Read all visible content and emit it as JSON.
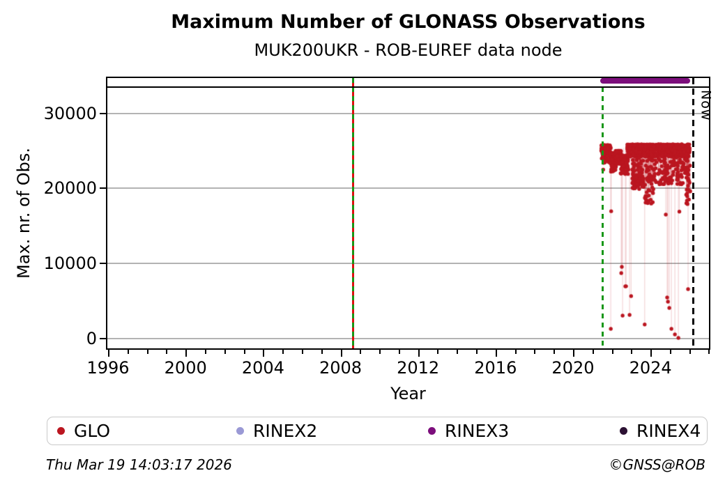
{
  "header": {
    "title": "Maximum Number of GLONASS Observations",
    "subtitle": "MUK200UKR - ROB-EUREF data node"
  },
  "footer": {
    "timestamp": "Thu Mar 19 14:03:17 2026",
    "copyright": "©GNSS@ROB"
  },
  "chart_data": {
    "type": "scatter",
    "title": "Maximum Number of GLONASS Observations",
    "subtitle": "MUK200UKR - ROB-EUREF data node",
    "xlabel": "Year",
    "ylabel": "Max. nr. of Obs.",
    "xlim": [
      1995.89,
      2027.09
    ],
    "ylim": [
      -1513,
      34884
    ],
    "grid": "horizontal-only",
    "xticks_major": [
      1996,
      2000,
      2004,
      2008,
      2012,
      2016,
      2020,
      2024
    ],
    "xticks_minor_step": 1,
    "yticks": [
      0,
      10000,
      20000,
      30000
    ],
    "ytick_labels": [
      "0",
      "10000",
      "20000",
      "30000"
    ],
    "now_line": {
      "x": 2026.2,
      "label": "Now",
      "color": "#000000",
      "dash": [
        9,
        6
      ]
    },
    "vlines": [
      {
        "name": "first-obs-line",
        "x": 2008.65,
        "color": "#dd1111",
        "dash": null,
        "width": 2.5
      },
      {
        "name": "rinex3-start-line",
        "x": 2008.65,
        "color": "#189718",
        "dash": [
          7,
          6
        ],
        "width": 3
      },
      {
        "name": "data-start-line",
        "x": 2021.52,
        "color": "#189718",
        "dash": [
          7,
          6
        ],
        "width": 3
      }
    ],
    "hline": {
      "value": 33500,
      "color": "#000000",
      "width": 2.5
    },
    "rinex3_bar": {
      "x0": 2021.42,
      "x1": 2026.06,
      "value": 34300,
      "thickness": 8,
      "color": "#7c0e7c"
    },
    "series": [
      {
        "name": "GLO",
        "color": "#bb1620",
        "stem_color": "rgba(187,22,32,0.18)",
        "marker_radius": 2.7,
        "seed": 1337,
        "stem_threshold": 22300,
        "stem_top": 24200,
        "band_segments": [
          {
            "x0": 2021.45,
            "x1": 2021.95,
            "ylow": 23400,
            "yhigh": 25750,
            "n": 170,
            "bias": 2.0
          },
          {
            "x0": 2021.95,
            "x1": 2022.22,
            "ylow": 22150,
            "yhigh": 24700,
            "n": 100,
            "bias": 1.6
          },
          {
            "x0": 2022.2,
            "x1": 2022.48,
            "ylow": 23100,
            "yhigh": 25000,
            "n": 90,
            "bias": 1.8
          },
          {
            "x0": 2022.45,
            "x1": 2022.85,
            "ylow": 21900,
            "yhigh": 24400,
            "n": 120,
            "bias": 1.6
          },
          {
            "x0": 2022.8,
            "x1": 2026.02,
            "ylow": 24200,
            "yhigh": 25850,
            "n": 820,
            "bias": 1.4
          },
          {
            "x0": 2023.05,
            "x1": 2023.65,
            "ylow": 19900,
            "yhigh": 24200,
            "n": 90,
            "bias": 0.6
          },
          {
            "x0": 2023.7,
            "x1": 2024.15,
            "ylow": 17900,
            "yhigh": 20800,
            "n": 20,
            "bias": 0.7
          },
          {
            "x0": 2023.75,
            "x1": 2025.95,
            "ylow": 20500,
            "yhigh": 24200,
            "n": 150,
            "bias": 0.8
          },
          {
            "x0": 2025.8,
            "x1": 2026.05,
            "ylow": 18000,
            "yhigh": 24000,
            "n": 25,
            "bias": 0.8
          }
        ],
        "outliers": [
          [
            2021.56,
            22500
          ],
          [
            2021.95,
            1270
          ],
          [
            2021.97,
            16950
          ],
          [
            2022.49,
            8700
          ],
          [
            2022.52,
            9530
          ],
          [
            2022.56,
            3030
          ],
          [
            2022.7,
            6930
          ],
          [
            2022.74,
            6950
          ],
          [
            2022.92,
            3130
          ],
          [
            2023.0,
            5630
          ],
          [
            2023.7,
            1850
          ],
          [
            2024.79,
            16500
          ],
          [
            2024.86,
            5450
          ],
          [
            2024.9,
            4890
          ],
          [
            2024.97,
            4060
          ],
          [
            2025.08,
            1270
          ],
          [
            2025.26,
            530
          ],
          [
            2025.44,
            70
          ],
          [
            2025.49,
            16900
          ],
          [
            2025.87,
            19830
          ],
          [
            2025.88,
            18350
          ],
          [
            2025.91,
            17900
          ],
          [
            2025.94,
            6570
          ]
        ]
      }
    ],
    "legend": [
      {
        "label": "GLO",
        "color": "#bb1620"
      },
      {
        "label": "RINEX2",
        "color": "#9a99d5"
      },
      {
        "label": "RINEX3",
        "color": "#7c0e7c"
      },
      {
        "label": "RINEX4",
        "color": "#2c1133"
      }
    ],
    "legend_offsets": [
      14,
      271,
      546,
      821
    ]
  }
}
